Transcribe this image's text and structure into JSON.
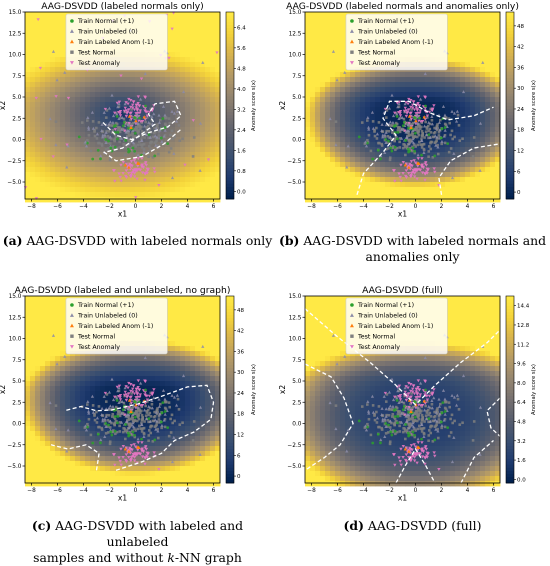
{
  "chart_data": [
    {
      "panel": "a",
      "type": "contour",
      "title": "AAG-DSVDD (labeled normals only)",
      "xlabel": "x1",
      "ylabel": "x2",
      "xlim": [
        -8.5,
        6.5
      ],
      "ylim": [
        -7,
        15
      ],
      "xticks": [
        "−8",
        "−6",
        "−4",
        "−2",
        "0",
        "2",
        "4",
        "6"
      ],
      "yticks": [
        "−5.0",
        "−2.5",
        "0.0",
        "2.5",
        "5.0",
        "7.5",
        "10.0",
        "12.5",
        "15.0"
      ],
      "colorbar_label": "Anomaly score s(x)",
      "colorbar_ticks": [
        "0.0",
        "0.8",
        "1.6",
        "2.4",
        "3.2",
        "4.0",
        "4.8",
        "5.6",
        "6.4"
      ],
      "colorbar_range": [
        -0.3,
        7.0
      ],
      "legend": [
        "Train Normal (+1)",
        "Train Unlabeled (0)",
        "Train Labeled Anom (-1)",
        "Test Normal",
        "Test Anomaly"
      ],
      "legend_loc": "upper center",
      "caption_label": "(a)",
      "caption_text": "AAG-DSVDD with labeled normals only"
    },
    {
      "panel": "b",
      "type": "contour",
      "title": "AAG-DSVDD (labeled normals and anomalies only)",
      "xlabel": "x1",
      "ylabel": "x2",
      "xlim": [
        -8.5,
        6.5
      ],
      "ylim": [
        -7,
        15
      ],
      "xticks": [
        "−8",
        "−6",
        "−4",
        "−2",
        "0",
        "2",
        "4",
        "6"
      ],
      "yticks": [
        "−5.0",
        "−2.5",
        "0.0",
        "2.5",
        "5.0",
        "7.5",
        "10.0",
        "12.5",
        "15.0"
      ],
      "colorbar_label": "Anomaly score s(x)",
      "colorbar_ticks": [
        "0",
        "6",
        "12",
        "18",
        "24",
        "30",
        "36",
        "42",
        "48"
      ],
      "colorbar_range": [
        -2,
        52
      ],
      "legend": [
        "Train Normal (+1)",
        "Train Unlabeled (0)",
        "Train Labeled Anom (-1)",
        "Test Normal",
        "Test Anomaly"
      ],
      "legend_loc": "upper center",
      "caption_label": "(b)",
      "caption_text": "AAG-DSVDD with labeled normals and anomalies only"
    },
    {
      "panel": "c",
      "type": "contour",
      "title": "AAG-DSVDD (labeled and unlabeled, no graph)",
      "xlabel": "x1",
      "ylabel": "x2",
      "xlim": [
        -8.5,
        6.5
      ],
      "ylim": [
        -7,
        15
      ],
      "xticks": [
        "−8",
        "−6",
        "−4",
        "−2",
        "0",
        "2",
        "4",
        "6"
      ],
      "yticks": [
        "−5.0",
        "−2.5",
        "0.0",
        "2.5",
        "5.0",
        "7.5",
        "10.0",
        "12.5",
        "15.0"
      ],
      "colorbar_label": "Anomaly score s(x)",
      "colorbar_ticks": [
        "0",
        "6",
        "12",
        "18",
        "24",
        "30",
        "36",
        "42",
        "48"
      ],
      "colorbar_range": [
        -2,
        52
      ],
      "legend": [
        "Train Normal (+1)",
        "Train Unlabeled (0)",
        "Train Labeled Anom (-1)",
        "Test Normal",
        "Test Anomaly"
      ],
      "legend_loc": "upper center",
      "caption_label": "(c)",
      "caption_text": "AAG-DSVDD with labeled and unlabeled samples and without k-NN graph"
    },
    {
      "panel": "d",
      "type": "contour",
      "title": "AAG-DSVDD (full)",
      "xlabel": "x1",
      "ylabel": "x2",
      "xlim": [
        -8.5,
        6.5
      ],
      "ylim": [
        -7,
        15
      ],
      "xticks": [
        "−8",
        "−6",
        "−4",
        "−2",
        "0",
        "2",
        "4",
        "6"
      ],
      "yticks": [
        "−5.0",
        "−2.5",
        "0.0",
        "2.5",
        "5.0",
        "7.5",
        "10.0",
        "12.5",
        "15.0"
      ],
      "colorbar_label": "Anomaly score s(x)",
      "colorbar_ticks": [
        "0.0",
        "1.6",
        "3.2",
        "4.8",
        "6.4",
        "8.0",
        "9.6",
        "11.2",
        "12.8",
        "14.4"
      ],
      "colorbar_range": [
        -0.3,
        15.2
      ],
      "legend": [
        "Train Normal (+1)",
        "Train Unlabeled (0)",
        "Train Labeled Anom (-1)",
        "Test Normal",
        "Test Anomaly"
      ],
      "legend_loc": "upper center",
      "caption_label": "(d)",
      "caption_text": "AAG-DSVDD (full)"
    }
  ],
  "series_colors": {
    "train_normal": "#2ca02c",
    "train_unlabeled": "#8c8ca8",
    "train_labeled_anom": "#ff7f0e",
    "test_normal": "#7f7f7f",
    "test_anomaly": "#e377c2"
  },
  "colormap": [
    "#00204d",
    "#1f3a6e",
    "#3a4f70",
    "#575d6d",
    "#757070",
    "#948570",
    "#b49a66",
    "#d6b24f",
    "#f3d23a",
    "#ffe945"
  ],
  "captions": {
    "a_label": "(a)",
    "a_text": "AAG-DSVDD with labeled normals only",
    "b_label": "(b)",
    "b_text_1": "AAG-DSVDD with labeled normals and",
    "b_text_2": "anomalies only",
    "c_label": "(c)",
    "c_text_1": "AAG-DSVDD with labeled and unlabeled",
    "c_text_2": "samples and without",
    "c_text_k": "k",
    "c_text_3": "-NN graph",
    "d_label": "(d)",
    "d_text": "AAG-DSVDD (full)"
  }
}
